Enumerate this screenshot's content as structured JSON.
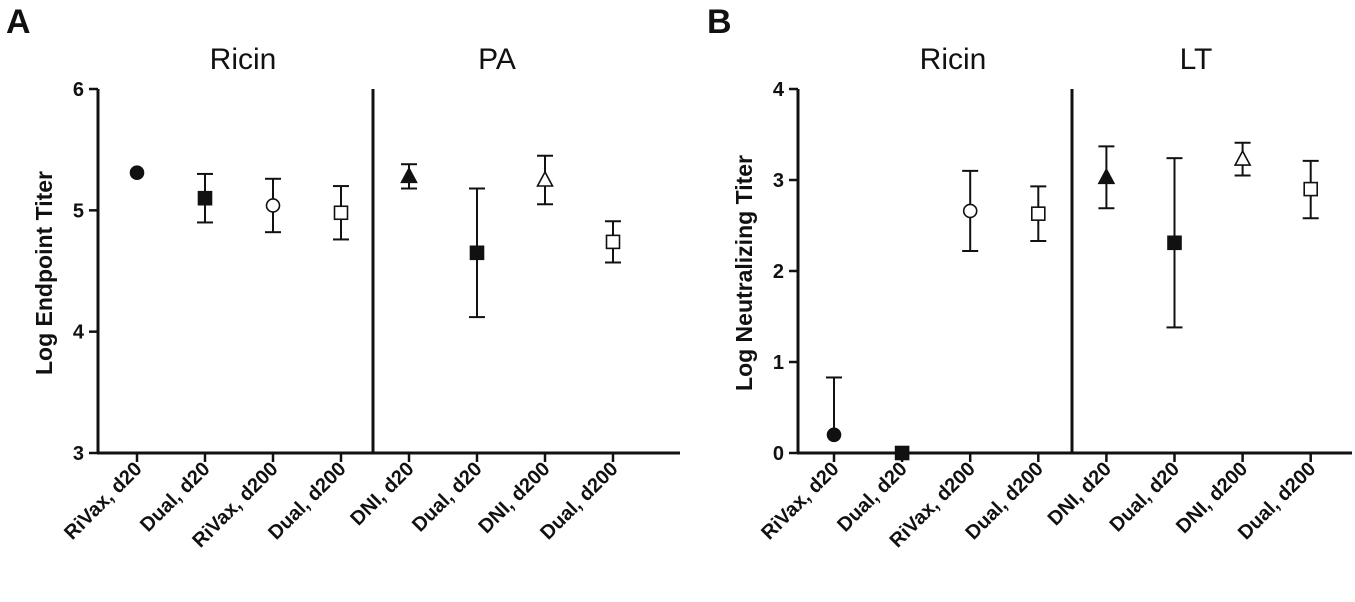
{
  "chart_data": [
    {
      "panel": "A",
      "type": "scatter",
      "ylabel": "Log Endpoint Titer",
      "ylim": [
        3,
        6
      ],
      "yticks": [
        "3",
        "4",
        "5",
        "6"
      ],
      "groups": [
        "Ricin",
        "PA"
      ],
      "categories": [
        "RiVax, d20",
        "Dual, d20",
        "RiVax, d200",
        "Dual, d200",
        "DNI, d20",
        "Dual, d20",
        "DNI, d200",
        "Dual, d200"
      ],
      "points": [
        {
          "category": "RiVax, d20",
          "group": "Ricin",
          "mean": 5.31,
          "err_low": 5.31,
          "err_high": 5.31,
          "marker": "circle",
          "filled": true
        },
        {
          "category": "Dual, d20",
          "group": "Ricin",
          "mean": 5.1,
          "err_low": 4.9,
          "err_high": 5.3,
          "marker": "square",
          "filled": true
        },
        {
          "category": "RiVax, d200",
          "group": "Ricin",
          "mean": 5.04,
          "err_low": 4.82,
          "err_high": 5.26,
          "marker": "circle",
          "filled": false
        },
        {
          "category": "Dual, d200",
          "group": "Ricin",
          "mean": 4.98,
          "err_low": 4.76,
          "err_high": 5.2,
          "marker": "square",
          "filled": false
        },
        {
          "category": "DNI, d20",
          "group": "PA",
          "mean": 5.28,
          "err_low": 5.18,
          "err_high": 5.38,
          "marker": "triangle",
          "filled": true
        },
        {
          "category": "Dual, d20",
          "group": "PA",
          "mean": 4.65,
          "err_low": 4.12,
          "err_high": 5.18,
          "marker": "square",
          "filled": true
        },
        {
          "category": "DNI, d200",
          "group": "PA",
          "mean": 5.25,
          "err_low": 5.05,
          "err_high": 5.45,
          "marker": "triangle",
          "filled": false
        },
        {
          "category": "Dual, d200",
          "group": "PA",
          "mean": 4.74,
          "err_low": 4.57,
          "err_high": 4.91,
          "marker": "square",
          "filled": false
        }
      ]
    },
    {
      "panel": "B",
      "type": "scatter",
      "ylabel": "Log Neutralizing Titer",
      "ylim": [
        0,
        4
      ],
      "yticks": [
        "0",
        "1",
        "2",
        "3",
        "4"
      ],
      "groups": [
        "Ricin",
        "LT"
      ],
      "categories": [
        "RiVax, d20",
        "Dual, d20",
        "RiVax, d200",
        "Dual, d200",
        "DNI, d20",
        "Dual, d20",
        "DNI, d200",
        "Dual, d200"
      ],
      "points": [
        {
          "category": "RiVax, d20",
          "group": "Ricin",
          "mean": 0.2,
          "err_low": 0.2,
          "err_high": 0.83,
          "marker": "circle",
          "filled": true
        },
        {
          "category": "Dual, d20",
          "group": "Ricin",
          "mean": 0.0,
          "err_low": 0.0,
          "err_high": 0.0,
          "marker": "square",
          "filled": true
        },
        {
          "category": "RiVax, d200",
          "group": "Ricin",
          "mean": 2.66,
          "err_low": 2.22,
          "err_high": 3.1,
          "marker": "circle",
          "filled": false
        },
        {
          "category": "Dual, d200",
          "group": "Ricin",
          "mean": 2.63,
          "err_low": 2.33,
          "err_high": 2.93,
          "marker": "square",
          "filled": false
        },
        {
          "category": "DNI, d20",
          "group": "LT",
          "mean": 3.03,
          "err_low": 2.69,
          "err_high": 3.37,
          "marker": "triangle",
          "filled": true
        },
        {
          "category": "Dual, d20",
          "group": "LT",
          "mean": 2.31,
          "err_low": 1.38,
          "err_high": 3.24,
          "marker": "square",
          "filled": true
        },
        {
          "category": "DNI, d200",
          "group": "LT",
          "mean": 3.23,
          "err_low": 3.05,
          "err_high": 3.41,
          "marker": "triangle",
          "filled": false
        },
        {
          "category": "Dual, d200",
          "group": "LT",
          "mean": 2.9,
          "err_low": 2.58,
          "err_high": 3.21,
          "marker": "square",
          "filled": false
        }
      ]
    }
  ],
  "colors": {
    "ink": "#111111",
    "background": "#ffffff"
  }
}
